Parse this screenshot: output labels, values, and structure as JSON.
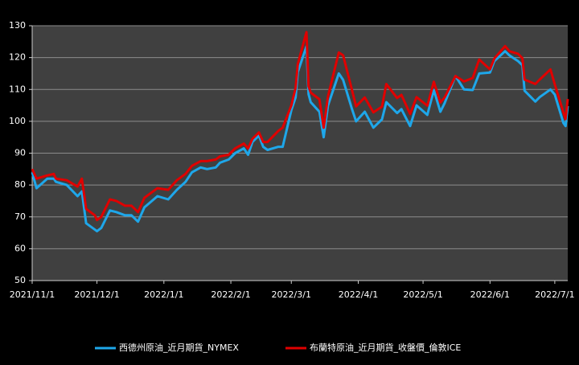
{
  "chart_data": {
    "type": "line",
    "x": [
      "2021/11/1",
      "2021/11/3",
      "2021/11/8",
      "2021/11/11",
      "2021/11/12",
      "2021/11/17",
      "2021/11/22",
      "2021/11/24",
      "2021/11/26",
      "2021/11/30",
      "2021/12/1",
      "2021/12/3",
      "2021/12/7",
      "2021/12/10",
      "2021/12/14",
      "2021/12/17",
      "2021/12/20",
      "2021/12/23",
      "2021/12/29",
      "2022/1/3",
      "2022/1/7",
      "2022/1/11",
      "2022/1/14",
      "2022/1/18",
      "2022/1/21",
      "2022/1/25",
      "2022/1/27",
      "2022/1/31",
      "2022/2/3",
      "2022/2/7",
      "2022/2/9",
      "2022/2/11",
      "2022/2/14",
      "2022/2/16",
      "2022/2/18",
      "2022/2/23",
      "2022/2/25",
      "2022/3/1",
      "2022/3/3",
      "2022/3/4",
      "2022/3/8",
      "2022/3/9",
      "2022/3/10",
      "2022/3/14",
      "2022/3/16",
      "2022/3/18",
      "2022/3/23",
      "2022/3/25",
      "2022/3/29",
      "2022/3/31",
      "2022/4/4",
      "2022/4/8",
      "2022/4/12",
      "2022/4/14",
      "2022/4/19",
      "2022/4/21",
      "2022/4/25",
      "2022/4/28",
      "2022/5/3",
      "2022/5/6",
      "2022/5/9",
      "2022/5/11",
      "2022/5/16",
      "2022/5/20",
      "2022/5/24",
      "2022/5/27",
      "2022/6/1",
      "2022/6/3",
      "2022/6/8",
      "2022/6/10",
      "2022/6/14",
      "2022/6/16",
      "2022/6/17",
      "2022/6/22",
      "2022/6/24",
      "2022/6/29",
      "2022/7/1",
      "2022/7/5",
      "2022/7/6",
      "2022/7/7"
    ],
    "series": [
      {
        "name": "西德州原油_近月期貨_NYMEX",
        "color": "#1ea7ea",
        "values": [
          84,
          79,
          82,
          82,
          81,
          80,
          76.5,
          78,
          68,
          66,
          65.5,
          66.5,
          72,
          71.5,
          70.5,
          70.5,
          68.5,
          73,
          76.5,
          75.5,
          78.5,
          81,
          84,
          85.5,
          85,
          85.5,
          87,
          88,
          90,
          91.5,
          89.5,
          93.5,
          95.5,
          92,
          91,
          92,
          92,
          103.5,
          107.5,
          115.5,
          123.5,
          108.5,
          106,
          103,
          95,
          105,
          115,
          113,
          104,
          100,
          103,
          98,
          100.6,
          106,
          102.6,
          103.8,
          98.5,
          105,
          102,
          109.8,
          103,
          105.7,
          114.2,
          110,
          109.8,
          115,
          115.3,
          118.9,
          122,
          120.7,
          118.9,
          117.6,
          109.6,
          106.2,
          107.6,
          110,
          108.4,
          99.5,
          98.5,
          104.8
        ]
      },
      {
        "name": "布蘭特原油_近月期貨_收盤價_倫敦ICE",
        "color": "#e00000",
        "values": [
          85,
          82,
          83,
          83.5,
          82,
          81.5,
          79.5,
          82,
          72.5,
          70.5,
          69,
          70,
          75.5,
          75,
          73.5,
          73.5,
          71.5,
          76,
          79,
          78.5,
          81.5,
          83.5,
          86,
          87.5,
          87.5,
          88,
          89,
          89.5,
          91.5,
          93,
          91.5,
          94.5,
          96.5,
          93.5,
          93.5,
          97,
          98,
          105,
          110.5,
          118,
          128,
          111,
          109,
          106.9,
          98,
          107.9,
          121.6,
          120.7,
          110,
          104.7,
          107.5,
          102.8,
          104.6,
          111.7,
          107.3,
          108.3,
          102.3,
          107.6,
          104.9,
          112.4,
          105.9,
          107.5,
          114.2,
          112.5,
          113.6,
          119.4,
          116.3,
          119.7,
          123.6,
          122,
          121.2,
          119.8,
          113.1,
          111.7,
          113.1,
          116.3,
          111.6,
          102.8,
          100.7,
          107
        ]
      }
    ],
    "xlim": [
      "2021/11/1",
      "2022/7/7"
    ],
    "xticks": [
      "2021/11/1",
      "2021/12/1",
      "2022/1/1",
      "2022/2/1",
      "2022/3/1",
      "2022/4/1",
      "2022/5/1",
      "2022/6/1",
      "2022/7/1"
    ],
    "ylim": [
      50,
      130
    ],
    "yticks": [
      50,
      60,
      70,
      80,
      90,
      100,
      110,
      120,
      130
    ],
    "grid": true,
    "legend": "bottom"
  }
}
